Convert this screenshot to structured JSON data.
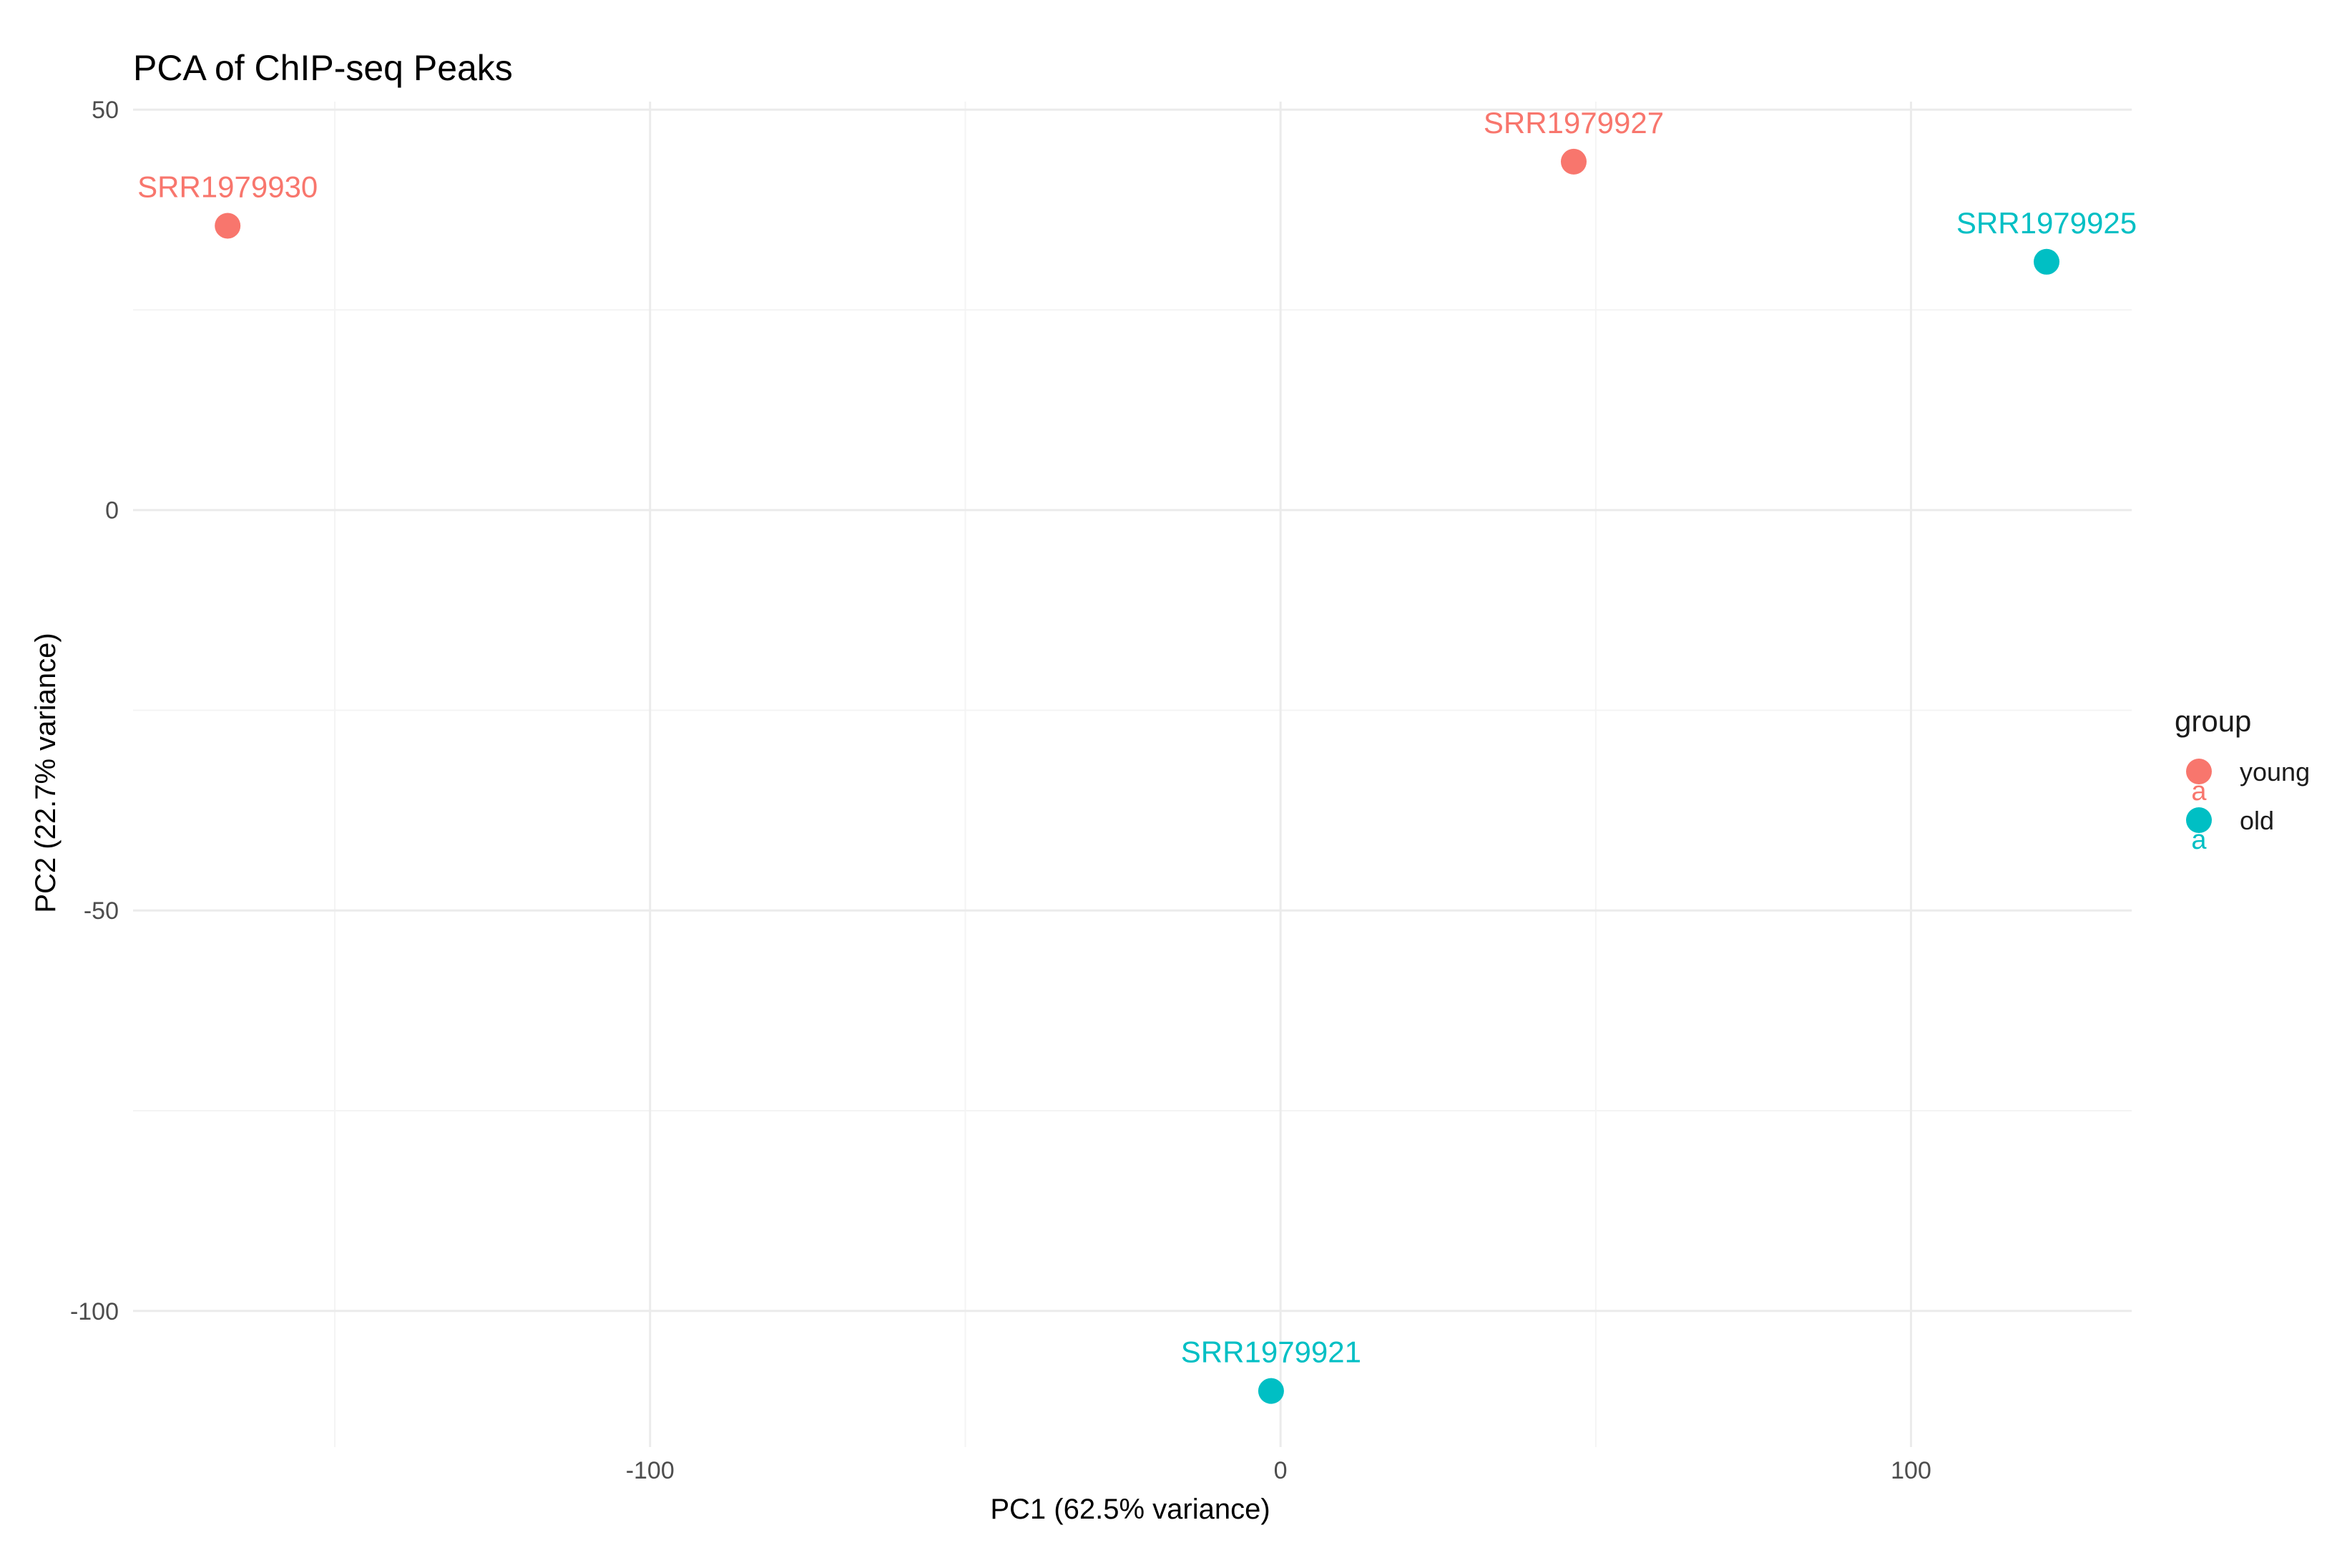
{
  "chart_data": {
    "type": "scatter",
    "title": "PCA of ChIP-seq Peaks",
    "xlabel": "PC1 (62.5% variance)",
    "ylabel": "PC2 (22.7% variance)",
    "xlim": [
      -182,
      135
    ],
    "ylim": [
      -117,
      51
    ],
    "x_ticks": [
      -100,
      0,
      100
    ],
    "y_ticks": [
      50,
      0,
      -50,
      -100
    ],
    "grid": true,
    "legend": {
      "title": "group",
      "position": "right",
      "glyph_text": "a",
      "entries": [
        {
          "label": "young",
          "color": "#F8766D"
        },
        {
          "label": "old",
          "color": "#00BFC4"
        }
      ]
    },
    "series": [
      {
        "name": "young",
        "color": "#F8766D",
        "points": [
          {
            "label": "SRR1979930",
            "x": -167,
            "y": 35.5
          },
          {
            "label": "SRR1979927",
            "x": 46.5,
            "y": 43.5
          }
        ]
      },
      {
        "name": "old",
        "color": "#00BFC4",
        "points": [
          {
            "label": "SRR1979925",
            "x": 121.5,
            "y": 31
          },
          {
            "label": "SRR1979921",
            "x": -1.5,
            "y": -110
          }
        ]
      }
    ]
  }
}
